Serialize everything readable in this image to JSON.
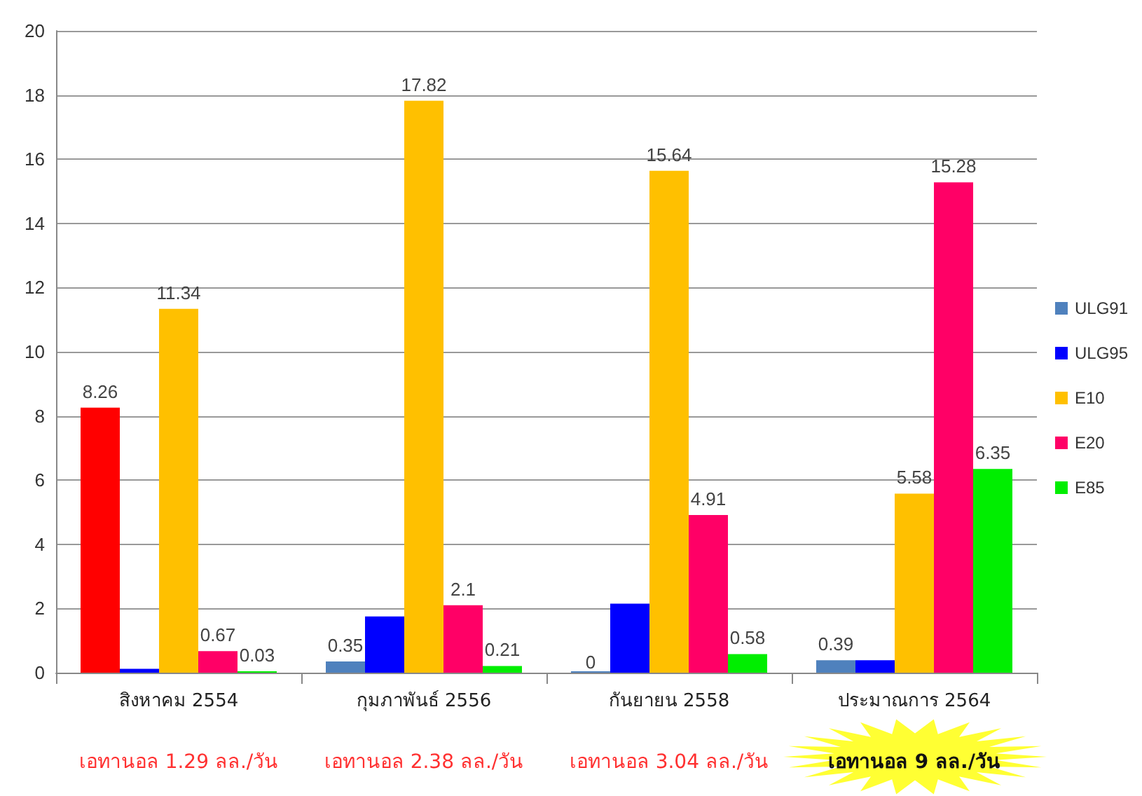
{
  "chart_data": {
    "type": "bar",
    "categories": [
      "สิงหาคม 2554",
      "กุมภาพันธ์ 2556",
      "กันยายน 2558",
      "ประมาณการ 2564"
    ],
    "series": [
      {
        "name": "ULG91",
        "color": "#4f81bd",
        "colors": [
          "#ff0000",
          "#4f81bd",
          "#4f81bd",
          "#4f81bd"
        ],
        "values": [
          8.26,
          0.35,
          0,
          0.39
        ],
        "value_labels": [
          "8.26",
          "0.35",
          "0",
          "0.39"
        ]
      },
      {
        "name": "ULG95",
        "color": "#0000ff",
        "values": [
          0.12,
          1.75,
          2.15,
          0.39
        ],
        "value_labels": [
          null,
          null,
          null,
          null
        ]
      },
      {
        "name": "E10",
        "color": "#ffc000",
        "values": [
          11.34,
          17.82,
          15.64,
          5.58
        ],
        "value_labels": [
          "11.34",
          "17.82",
          "15.64",
          "5.58"
        ]
      },
      {
        "name": "E20",
        "color": "#ff0066",
        "values": [
          0.67,
          2.1,
          4.91,
          15.28
        ],
        "value_labels": [
          "0.67",
          "2.1",
          "4.91",
          "15.28"
        ]
      },
      {
        "name": "E85",
        "color": "#00ee00",
        "values": [
          0.03,
          0.21,
          0.58,
          6.35
        ],
        "value_labels": [
          "0.03",
          "0.21",
          "0.58",
          "6.35"
        ]
      }
    ],
    "ylim": [
      0,
      20
    ],
    "yticks": [
      0,
      2,
      4,
      6,
      8,
      10,
      12,
      14,
      16,
      18,
      20
    ],
    "grid": "y",
    "legend": "right",
    "annotations": [
      "เอทานอล 1.29 ลล./วัน",
      "เอทานอล 2.38 ลล./วัน",
      "เอทานอล 3.04 ลล./วัน",
      "เอทานอล 9 ลล./วัน"
    ]
  }
}
